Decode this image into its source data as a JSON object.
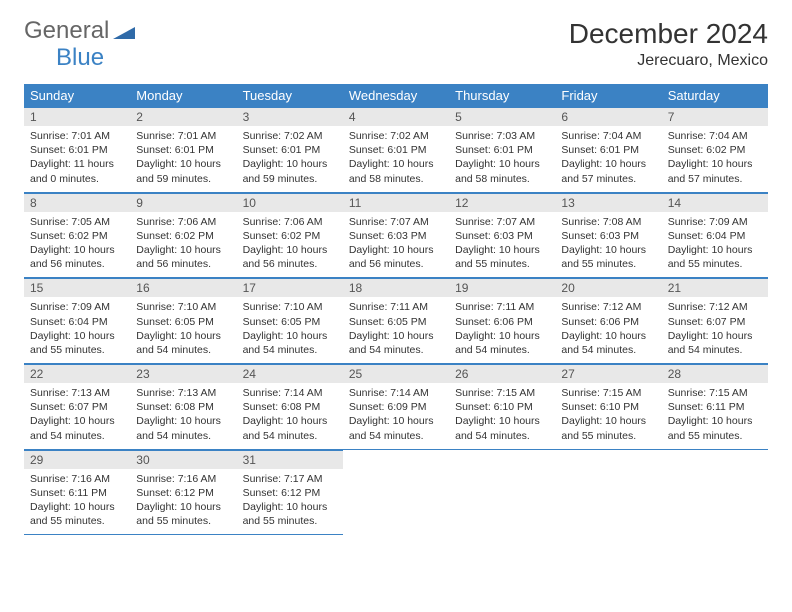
{
  "brand": {
    "word1": "General",
    "word2": "Blue"
  },
  "title": "December 2024",
  "location": "Jerecuaro, Mexico",
  "colors": {
    "header_bg": "#3b82c4",
    "header_fg": "#ffffff",
    "daynum_bg": "#e8e8e8",
    "rule": "#3b82c4",
    "text": "#333333",
    "page_bg": "#ffffff"
  },
  "typography": {
    "title_fontsize": 28,
    "location_fontsize": 16,
    "dow_fontsize": 13,
    "daynum_fontsize": 12,
    "body_fontsize": 10.5
  },
  "days_of_week": [
    "Sunday",
    "Monday",
    "Tuesday",
    "Wednesday",
    "Thursday",
    "Friday",
    "Saturday"
  ],
  "weeks": [
    [
      {
        "num": "1",
        "sunrise": "Sunrise: 7:01 AM",
        "sunset": "Sunset: 6:01 PM",
        "daylight": "Daylight: 11 hours and 0 minutes."
      },
      {
        "num": "2",
        "sunrise": "Sunrise: 7:01 AM",
        "sunset": "Sunset: 6:01 PM",
        "daylight": "Daylight: 10 hours and 59 minutes."
      },
      {
        "num": "3",
        "sunrise": "Sunrise: 7:02 AM",
        "sunset": "Sunset: 6:01 PM",
        "daylight": "Daylight: 10 hours and 59 minutes."
      },
      {
        "num": "4",
        "sunrise": "Sunrise: 7:02 AM",
        "sunset": "Sunset: 6:01 PM",
        "daylight": "Daylight: 10 hours and 58 minutes."
      },
      {
        "num": "5",
        "sunrise": "Sunrise: 7:03 AM",
        "sunset": "Sunset: 6:01 PM",
        "daylight": "Daylight: 10 hours and 58 minutes."
      },
      {
        "num": "6",
        "sunrise": "Sunrise: 7:04 AM",
        "sunset": "Sunset: 6:01 PM",
        "daylight": "Daylight: 10 hours and 57 minutes."
      },
      {
        "num": "7",
        "sunrise": "Sunrise: 7:04 AM",
        "sunset": "Sunset: 6:02 PM",
        "daylight": "Daylight: 10 hours and 57 minutes."
      }
    ],
    [
      {
        "num": "8",
        "sunrise": "Sunrise: 7:05 AM",
        "sunset": "Sunset: 6:02 PM",
        "daylight": "Daylight: 10 hours and 56 minutes."
      },
      {
        "num": "9",
        "sunrise": "Sunrise: 7:06 AM",
        "sunset": "Sunset: 6:02 PM",
        "daylight": "Daylight: 10 hours and 56 minutes."
      },
      {
        "num": "10",
        "sunrise": "Sunrise: 7:06 AM",
        "sunset": "Sunset: 6:02 PM",
        "daylight": "Daylight: 10 hours and 56 minutes."
      },
      {
        "num": "11",
        "sunrise": "Sunrise: 7:07 AM",
        "sunset": "Sunset: 6:03 PM",
        "daylight": "Daylight: 10 hours and 56 minutes."
      },
      {
        "num": "12",
        "sunrise": "Sunrise: 7:07 AM",
        "sunset": "Sunset: 6:03 PM",
        "daylight": "Daylight: 10 hours and 55 minutes."
      },
      {
        "num": "13",
        "sunrise": "Sunrise: 7:08 AM",
        "sunset": "Sunset: 6:03 PM",
        "daylight": "Daylight: 10 hours and 55 minutes."
      },
      {
        "num": "14",
        "sunrise": "Sunrise: 7:09 AM",
        "sunset": "Sunset: 6:04 PM",
        "daylight": "Daylight: 10 hours and 55 minutes."
      }
    ],
    [
      {
        "num": "15",
        "sunrise": "Sunrise: 7:09 AM",
        "sunset": "Sunset: 6:04 PM",
        "daylight": "Daylight: 10 hours and 55 minutes."
      },
      {
        "num": "16",
        "sunrise": "Sunrise: 7:10 AM",
        "sunset": "Sunset: 6:05 PM",
        "daylight": "Daylight: 10 hours and 54 minutes."
      },
      {
        "num": "17",
        "sunrise": "Sunrise: 7:10 AM",
        "sunset": "Sunset: 6:05 PM",
        "daylight": "Daylight: 10 hours and 54 minutes."
      },
      {
        "num": "18",
        "sunrise": "Sunrise: 7:11 AM",
        "sunset": "Sunset: 6:05 PM",
        "daylight": "Daylight: 10 hours and 54 minutes."
      },
      {
        "num": "19",
        "sunrise": "Sunrise: 7:11 AM",
        "sunset": "Sunset: 6:06 PM",
        "daylight": "Daylight: 10 hours and 54 minutes."
      },
      {
        "num": "20",
        "sunrise": "Sunrise: 7:12 AM",
        "sunset": "Sunset: 6:06 PM",
        "daylight": "Daylight: 10 hours and 54 minutes."
      },
      {
        "num": "21",
        "sunrise": "Sunrise: 7:12 AM",
        "sunset": "Sunset: 6:07 PM",
        "daylight": "Daylight: 10 hours and 54 minutes."
      }
    ],
    [
      {
        "num": "22",
        "sunrise": "Sunrise: 7:13 AM",
        "sunset": "Sunset: 6:07 PM",
        "daylight": "Daylight: 10 hours and 54 minutes."
      },
      {
        "num": "23",
        "sunrise": "Sunrise: 7:13 AM",
        "sunset": "Sunset: 6:08 PM",
        "daylight": "Daylight: 10 hours and 54 minutes."
      },
      {
        "num": "24",
        "sunrise": "Sunrise: 7:14 AM",
        "sunset": "Sunset: 6:08 PM",
        "daylight": "Daylight: 10 hours and 54 minutes."
      },
      {
        "num": "25",
        "sunrise": "Sunrise: 7:14 AM",
        "sunset": "Sunset: 6:09 PM",
        "daylight": "Daylight: 10 hours and 54 minutes."
      },
      {
        "num": "26",
        "sunrise": "Sunrise: 7:15 AM",
        "sunset": "Sunset: 6:10 PM",
        "daylight": "Daylight: 10 hours and 54 minutes."
      },
      {
        "num": "27",
        "sunrise": "Sunrise: 7:15 AM",
        "sunset": "Sunset: 6:10 PM",
        "daylight": "Daylight: 10 hours and 55 minutes."
      },
      {
        "num": "28",
        "sunrise": "Sunrise: 7:15 AM",
        "sunset": "Sunset: 6:11 PM",
        "daylight": "Daylight: 10 hours and 55 minutes."
      }
    ],
    [
      {
        "num": "29",
        "sunrise": "Sunrise: 7:16 AM",
        "sunset": "Sunset: 6:11 PM",
        "daylight": "Daylight: 10 hours and 55 minutes."
      },
      {
        "num": "30",
        "sunrise": "Sunrise: 7:16 AM",
        "sunset": "Sunset: 6:12 PM",
        "daylight": "Daylight: 10 hours and 55 minutes."
      },
      {
        "num": "31",
        "sunrise": "Sunrise: 7:17 AM",
        "sunset": "Sunset: 6:12 PM",
        "daylight": "Daylight: 10 hours and 55 minutes."
      },
      null,
      null,
      null,
      null
    ]
  ]
}
